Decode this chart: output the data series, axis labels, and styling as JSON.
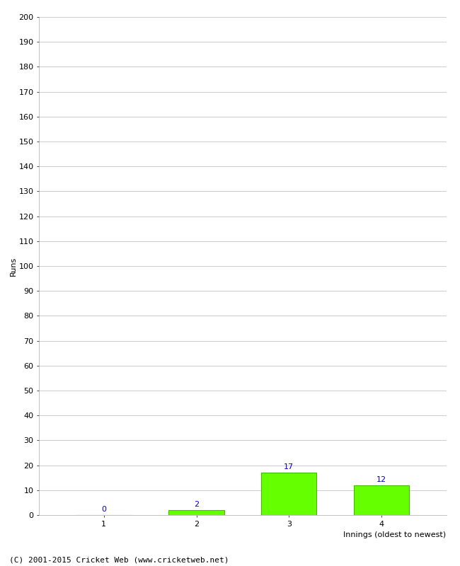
{
  "categories": [
    "1",
    "2",
    "3",
    "4"
  ],
  "values": [
    0,
    2,
    17,
    12
  ],
  "bar_color": "#66ff00",
  "bar_edge_color": "#44bb00",
  "value_label_color": "#0000cc",
  "xlabel": "Innings (oldest to newest)",
  "ylabel": "Runs",
  "ylim": [
    0,
    200
  ],
  "ytick_interval": 10,
  "footer": "(C) 2001-2015 Cricket Web (www.cricketweb.net)",
  "background_color": "#ffffff",
  "grid_color": "#cccccc",
  "value_fontsize": 8,
  "axis_tick_fontsize": 8,
  "label_fontsize": 8,
  "footer_fontsize": 8,
  "bar_width": 0.6
}
